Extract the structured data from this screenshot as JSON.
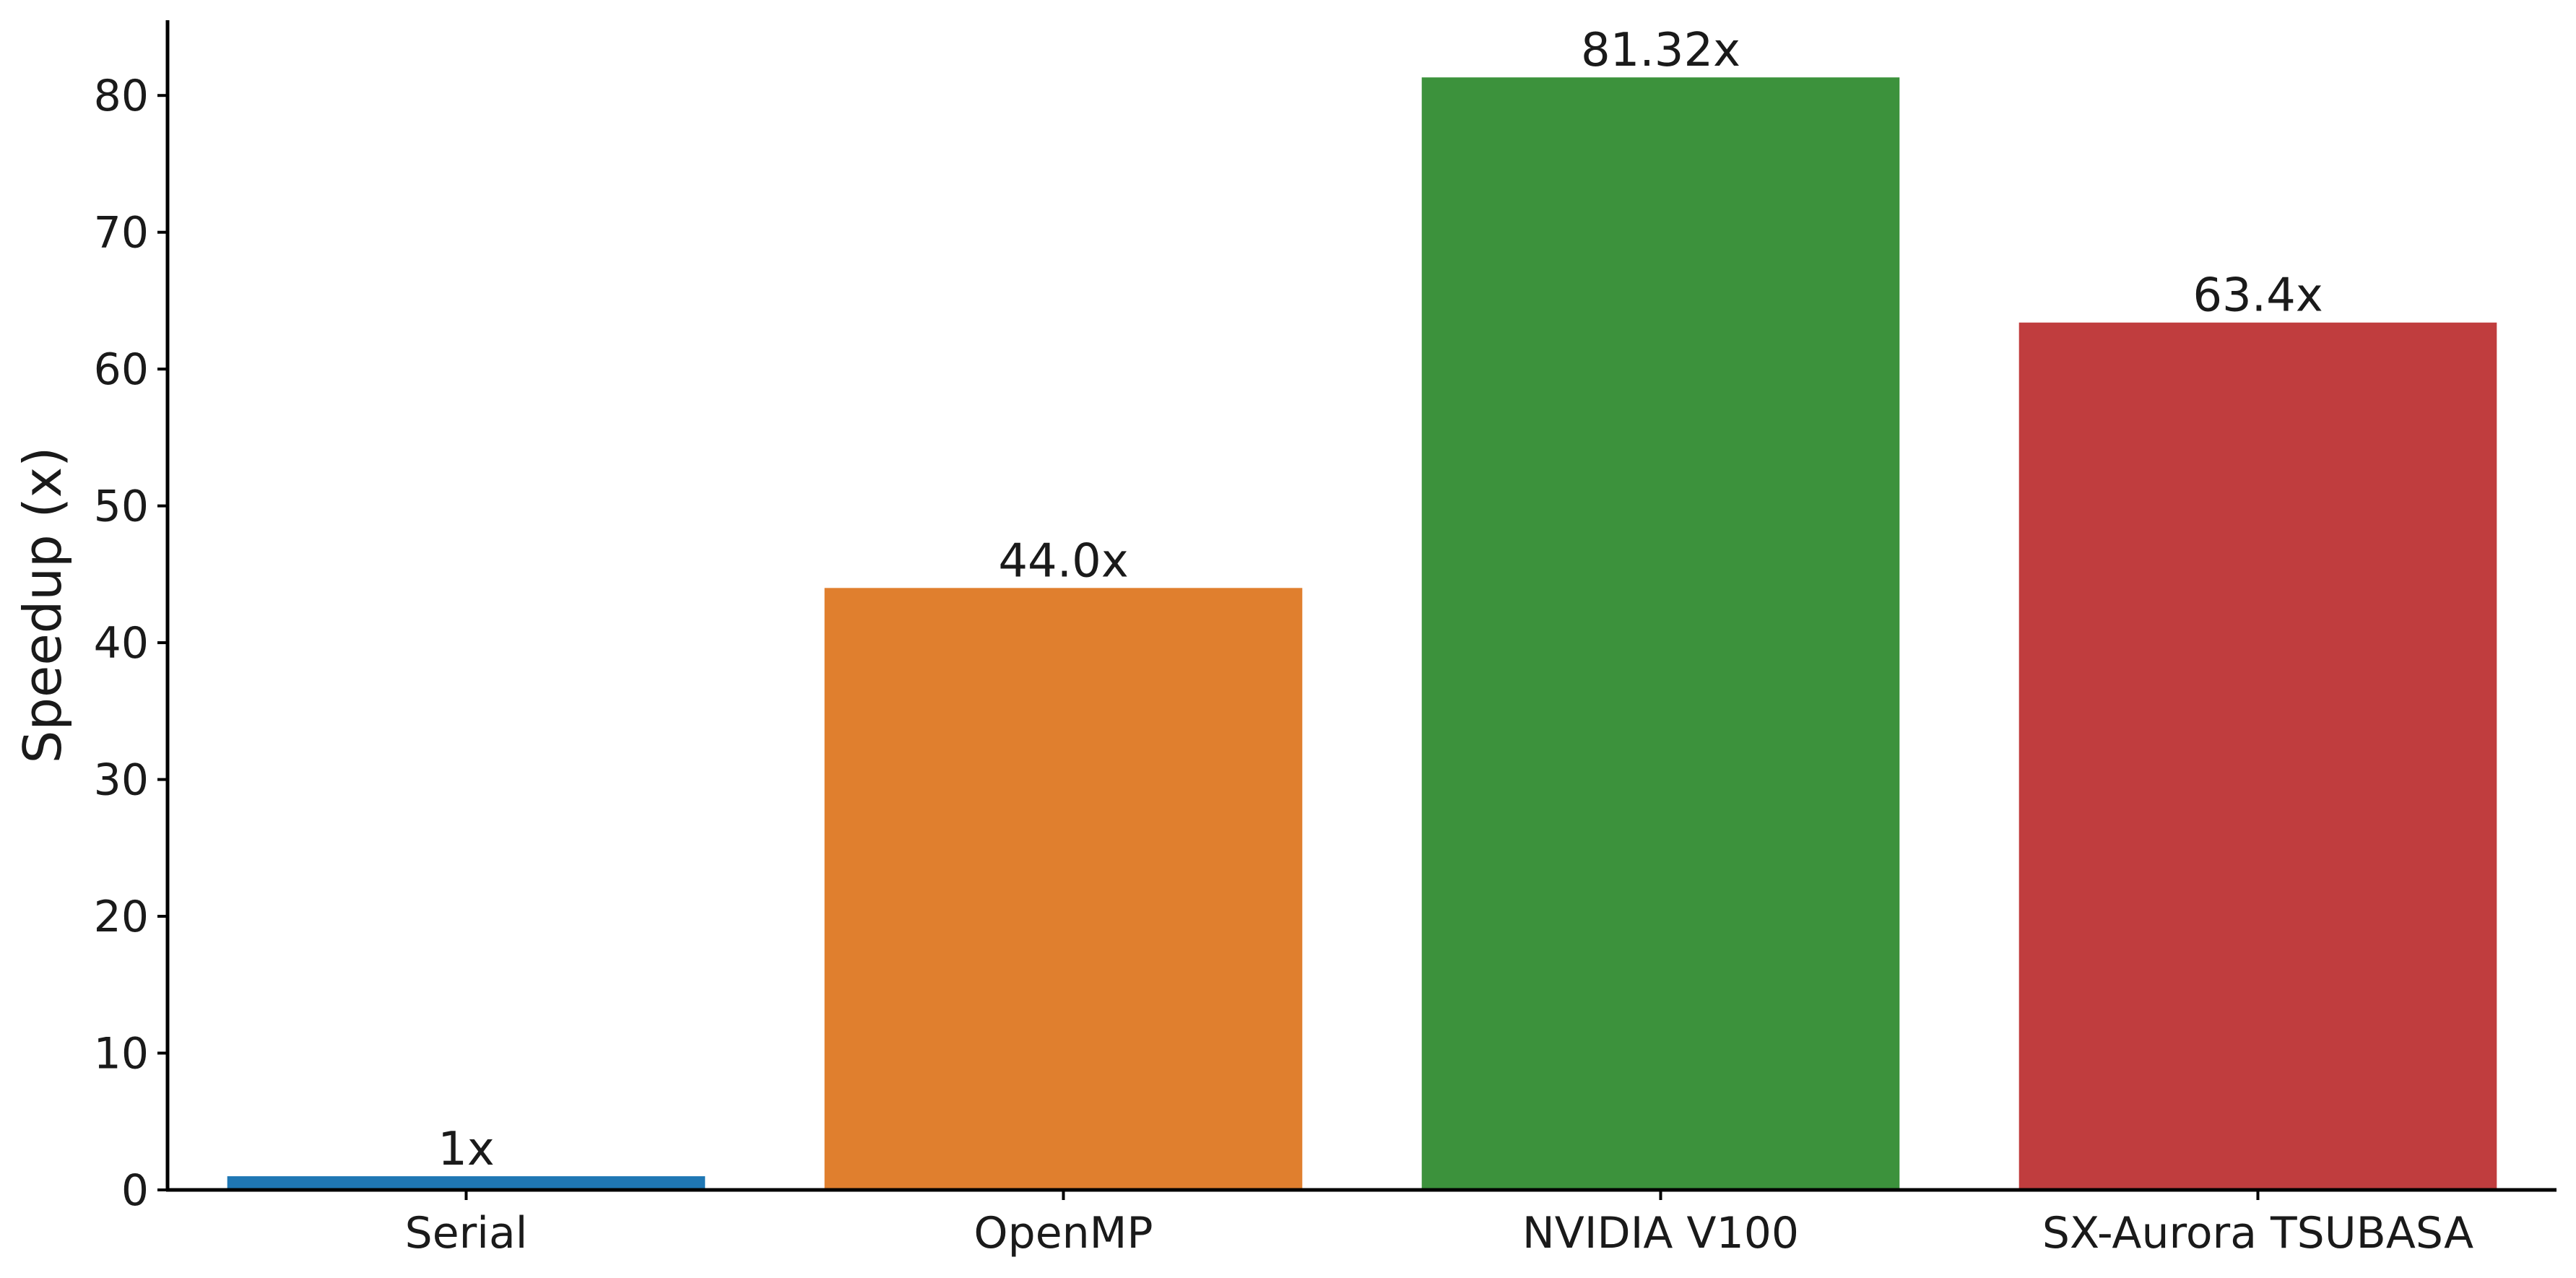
{
  "chart_data": {
    "type": "bar",
    "categories": [
      "Serial",
      "OpenMP",
      "NVIDIA V100",
      "SX-Aurora TSUBASA"
    ],
    "values": [
      1,
      44.0,
      81.32,
      63.4
    ],
    "value_labels": [
      "1x",
      "44.0x",
      "81.32x",
      "63.4x"
    ],
    "colors": [
      "#1f77b4",
      "#e07f2e",
      "#3c923c",
      "#c03d3e"
    ],
    "title": "",
    "xlabel": "",
    "ylabel": "Speedup (x)",
    "ylim": [
      0,
      85.5
    ],
    "yticks": [
      0,
      10,
      20,
      30,
      40,
      50,
      60,
      70,
      80
    ],
    "grid": false,
    "legend": "none"
  }
}
